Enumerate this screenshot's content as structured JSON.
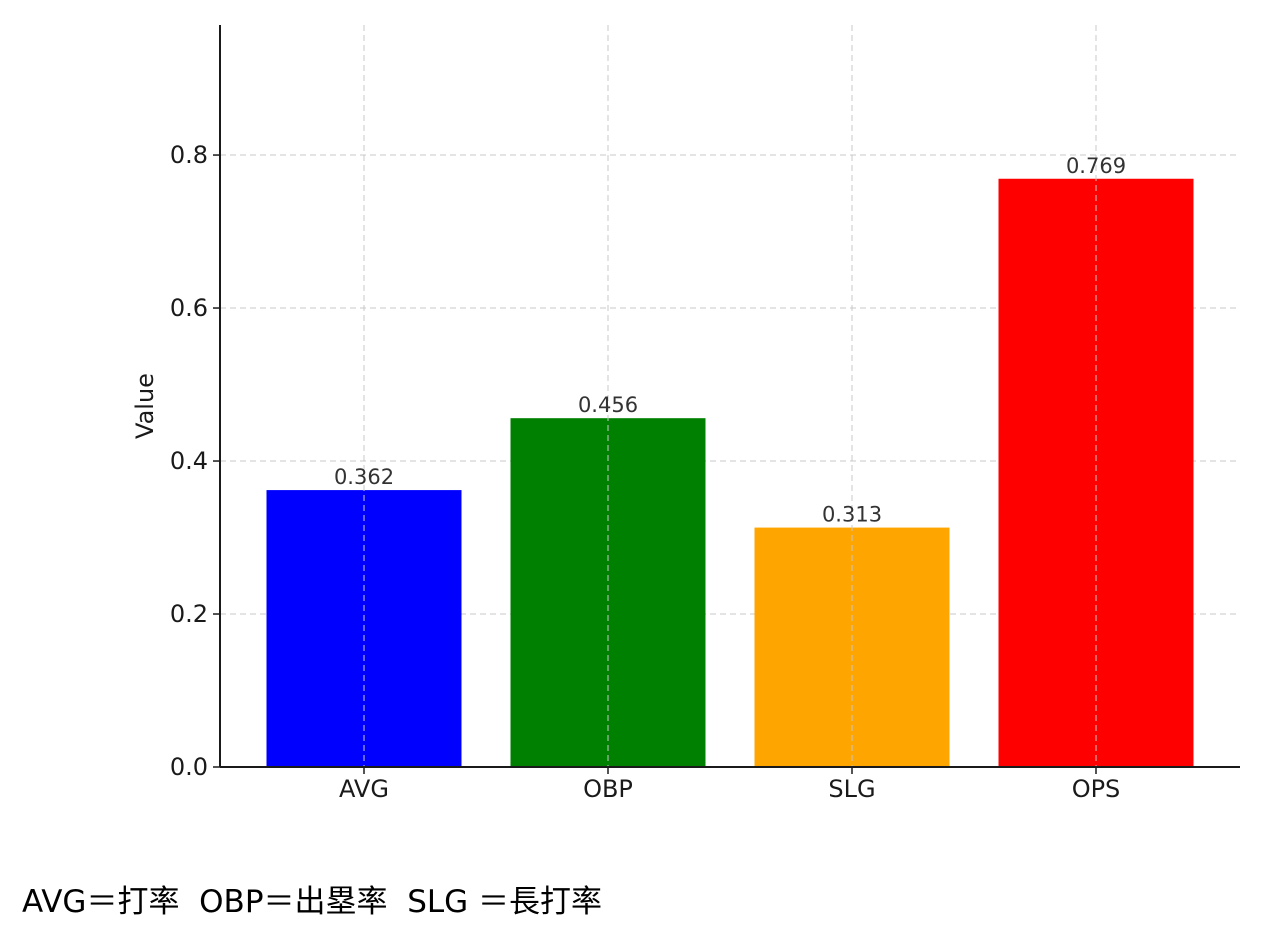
{
  "chart_data": {
    "type": "bar",
    "categories": [
      "AVG",
      "OBP",
      "SLG",
      "OPS"
    ],
    "values": [
      0.362,
      0.456,
      0.313,
      0.769
    ],
    "value_labels": [
      "0.362",
      "0.456",
      "0.313",
      "0.769"
    ],
    "colors": [
      "#0000ff",
      "#008000",
      "#ffa500",
      "#ff0000"
    ],
    "ylabel": "Value",
    "ylim": [
      0,
      0.97
    ],
    "yticks": [
      0.0,
      0.2,
      0.4,
      0.6,
      0.8
    ],
    "ytick_labels": [
      "0.0",
      "0.2",
      "0.4",
      "0.6",
      "0.8"
    ],
    "grid": true
  },
  "footnote": "AVG＝打率  OBP＝出塁率  SLG ＝長打率"
}
